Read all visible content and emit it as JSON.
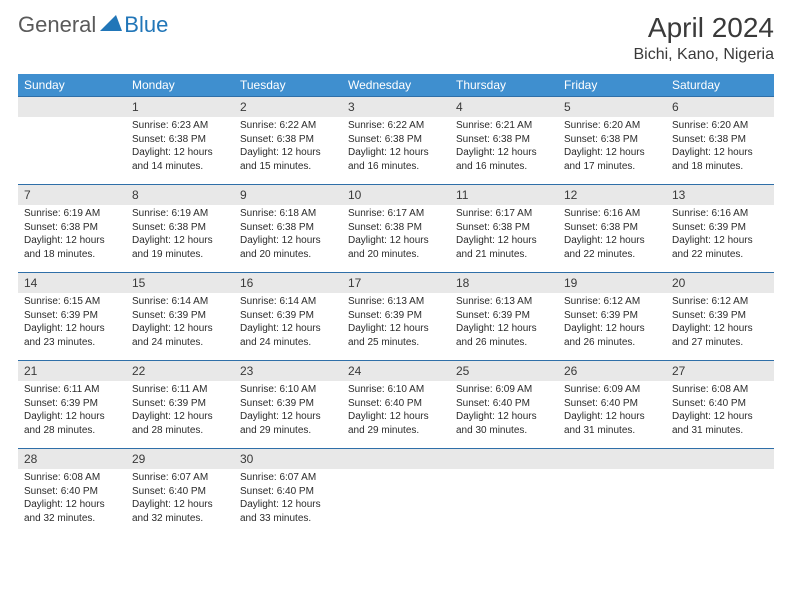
{
  "logo": {
    "part1": "General",
    "part2": "Blue"
  },
  "title": "April 2024",
  "location": "Bichi, Kano, Nigeria",
  "colors": {
    "header_bg": "#3f8fcf",
    "header_fg": "#ffffff",
    "daynum_bg": "#e8e8e8",
    "daynum_border": "#2f6fa8",
    "text": "#2b2b2b",
    "logo_gray": "#5a5a5a",
    "logo_blue": "#2176b8"
  },
  "daysOfWeek": [
    "Sunday",
    "Monday",
    "Tuesday",
    "Wednesday",
    "Thursday",
    "Friday",
    "Saturday"
  ],
  "startOffset": 1,
  "days": [
    {
      "n": 1,
      "sunrise": "6:23 AM",
      "sunset": "6:38 PM",
      "daylight": "12 hours and 14 minutes."
    },
    {
      "n": 2,
      "sunrise": "6:22 AM",
      "sunset": "6:38 PM",
      "daylight": "12 hours and 15 minutes."
    },
    {
      "n": 3,
      "sunrise": "6:22 AM",
      "sunset": "6:38 PM",
      "daylight": "12 hours and 16 minutes."
    },
    {
      "n": 4,
      "sunrise": "6:21 AM",
      "sunset": "6:38 PM",
      "daylight": "12 hours and 16 minutes."
    },
    {
      "n": 5,
      "sunrise": "6:20 AM",
      "sunset": "6:38 PM",
      "daylight": "12 hours and 17 minutes."
    },
    {
      "n": 6,
      "sunrise": "6:20 AM",
      "sunset": "6:38 PM",
      "daylight": "12 hours and 18 minutes."
    },
    {
      "n": 7,
      "sunrise": "6:19 AM",
      "sunset": "6:38 PM",
      "daylight": "12 hours and 18 minutes."
    },
    {
      "n": 8,
      "sunrise": "6:19 AM",
      "sunset": "6:38 PM",
      "daylight": "12 hours and 19 minutes."
    },
    {
      "n": 9,
      "sunrise": "6:18 AM",
      "sunset": "6:38 PM",
      "daylight": "12 hours and 20 minutes."
    },
    {
      "n": 10,
      "sunrise": "6:17 AM",
      "sunset": "6:38 PM",
      "daylight": "12 hours and 20 minutes."
    },
    {
      "n": 11,
      "sunrise": "6:17 AM",
      "sunset": "6:38 PM",
      "daylight": "12 hours and 21 minutes."
    },
    {
      "n": 12,
      "sunrise": "6:16 AM",
      "sunset": "6:38 PM",
      "daylight": "12 hours and 22 minutes."
    },
    {
      "n": 13,
      "sunrise": "6:16 AM",
      "sunset": "6:39 PM",
      "daylight": "12 hours and 22 minutes."
    },
    {
      "n": 14,
      "sunrise": "6:15 AM",
      "sunset": "6:39 PM",
      "daylight": "12 hours and 23 minutes."
    },
    {
      "n": 15,
      "sunrise": "6:14 AM",
      "sunset": "6:39 PM",
      "daylight": "12 hours and 24 minutes."
    },
    {
      "n": 16,
      "sunrise": "6:14 AM",
      "sunset": "6:39 PM",
      "daylight": "12 hours and 24 minutes."
    },
    {
      "n": 17,
      "sunrise": "6:13 AM",
      "sunset": "6:39 PM",
      "daylight": "12 hours and 25 minutes."
    },
    {
      "n": 18,
      "sunrise": "6:13 AM",
      "sunset": "6:39 PM",
      "daylight": "12 hours and 26 minutes."
    },
    {
      "n": 19,
      "sunrise": "6:12 AM",
      "sunset": "6:39 PM",
      "daylight": "12 hours and 26 minutes."
    },
    {
      "n": 20,
      "sunrise": "6:12 AM",
      "sunset": "6:39 PM",
      "daylight": "12 hours and 27 minutes."
    },
    {
      "n": 21,
      "sunrise": "6:11 AM",
      "sunset": "6:39 PM",
      "daylight": "12 hours and 28 minutes."
    },
    {
      "n": 22,
      "sunrise": "6:11 AM",
      "sunset": "6:39 PM",
      "daylight": "12 hours and 28 minutes."
    },
    {
      "n": 23,
      "sunrise": "6:10 AM",
      "sunset": "6:39 PM",
      "daylight": "12 hours and 29 minutes."
    },
    {
      "n": 24,
      "sunrise": "6:10 AM",
      "sunset": "6:40 PM",
      "daylight": "12 hours and 29 minutes."
    },
    {
      "n": 25,
      "sunrise": "6:09 AM",
      "sunset": "6:40 PM",
      "daylight": "12 hours and 30 minutes."
    },
    {
      "n": 26,
      "sunrise": "6:09 AM",
      "sunset": "6:40 PM",
      "daylight": "12 hours and 31 minutes."
    },
    {
      "n": 27,
      "sunrise": "6:08 AM",
      "sunset": "6:40 PM",
      "daylight": "12 hours and 31 minutes."
    },
    {
      "n": 28,
      "sunrise": "6:08 AM",
      "sunset": "6:40 PM",
      "daylight": "12 hours and 32 minutes."
    },
    {
      "n": 29,
      "sunrise": "6:07 AM",
      "sunset": "6:40 PM",
      "daylight": "12 hours and 32 minutes."
    },
    {
      "n": 30,
      "sunrise": "6:07 AM",
      "sunset": "6:40 PM",
      "daylight": "12 hours and 33 minutes."
    }
  ],
  "labels": {
    "sunrise": "Sunrise:",
    "sunset": "Sunset:",
    "daylight": "Daylight:"
  }
}
